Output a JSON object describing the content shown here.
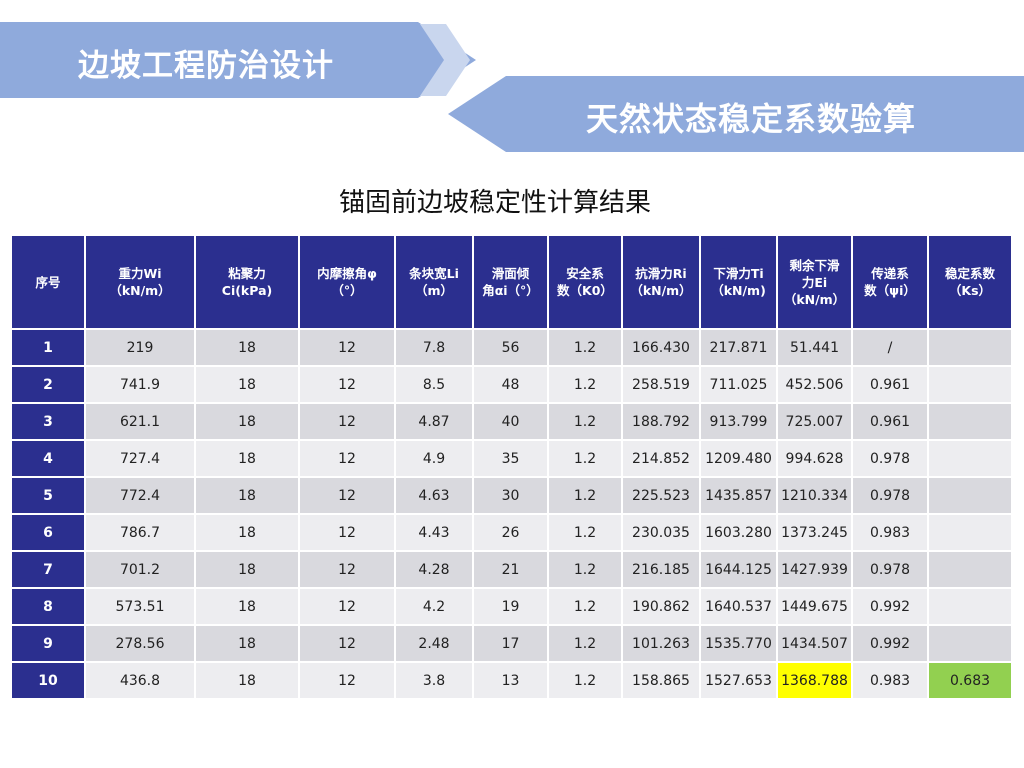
{
  "banner": {
    "left_title": "边坡工程防治设计",
    "right_title": "天然状态稳定系数验算"
  },
  "table": {
    "title": "锚固前边坡稳定性计算结果",
    "headers": [
      [
        "序号"
      ],
      [
        "重力Wi",
        "（kN/m）"
      ],
      [
        "粘聚力",
        "Ci(kPa)"
      ],
      [
        "内摩擦角φ",
        "（°）"
      ],
      [
        "条块宽Li",
        "（m）"
      ],
      [
        "滑面倾",
        "角αi（°）"
      ],
      [
        "安全系",
        "数（K0）"
      ],
      [
        "抗滑力Ri",
        "（kN/m）"
      ],
      [
        "下滑力Ti",
        "（kN/m)"
      ],
      [
        "剩余下滑",
        "力Ei",
        "（kN/m）"
      ],
      [
        "传递系",
        "数（ψi）"
      ],
      [
        "稳定系数",
        "（Ks）"
      ]
    ],
    "rows": [
      [
        "1",
        "219",
        "18",
        "12",
        "7.8",
        "56",
        "1.2",
        "166.430",
        "217.871",
        "51.441",
        "/",
        ""
      ],
      [
        "2",
        "741.9",
        "18",
        "12",
        "8.5",
        "48",
        "1.2",
        "258.519",
        "711.025",
        "452.506",
        "0.961",
        ""
      ],
      [
        "3",
        "621.1",
        "18",
        "12",
        "4.87",
        "40",
        "1.2",
        "188.792",
        "913.799",
        "725.007",
        "0.961",
        ""
      ],
      [
        "4",
        "727.4",
        "18",
        "12",
        "4.9",
        "35",
        "1.2",
        "214.852",
        "1209.480",
        "994.628",
        "0.978",
        ""
      ],
      [
        "5",
        "772.4",
        "18",
        "12",
        "4.63",
        "30",
        "1.2",
        "225.523",
        "1435.857",
        "1210.334",
        "0.978",
        ""
      ],
      [
        "6",
        "786.7",
        "18",
        "12",
        "4.43",
        "26",
        "1.2",
        "230.035",
        "1603.280",
        "1373.245",
        "0.983",
        ""
      ],
      [
        "7",
        "701.2",
        "18",
        "12",
        "4.28",
        "21",
        "1.2",
        "216.185",
        "1644.125",
        "1427.939",
        "0.978",
        ""
      ],
      [
        "8",
        "573.51",
        "18",
        "12",
        "4.2",
        "19",
        "1.2",
        "190.862",
        "1640.537",
        "1449.675",
        "0.992",
        ""
      ],
      [
        "9",
        "278.56",
        "18",
        "12",
        "2.48",
        "17",
        "1.2",
        "101.263",
        "1535.770",
        "1434.507",
        "0.992",
        ""
      ],
      [
        "10",
        "436.8",
        "18",
        "12",
        "3.8",
        "13",
        "1.2",
        "158.865",
        "1527.653",
        "1368.788",
        "0.983",
        "0.683"
      ]
    ],
    "highlights": {
      "yellow_cell": {
        "row": 9,
        "col": 9
      },
      "green_cell": {
        "row": 9,
        "col": 11
      }
    }
  },
  "colors": {
    "banner_blue": "#8faadc",
    "header_navy": "#2b2f8f",
    "row_odd": "#d9d9de",
    "row_even": "#ededf0",
    "highlight_yellow": "#ffff00",
    "highlight_green": "#92d050"
  }
}
